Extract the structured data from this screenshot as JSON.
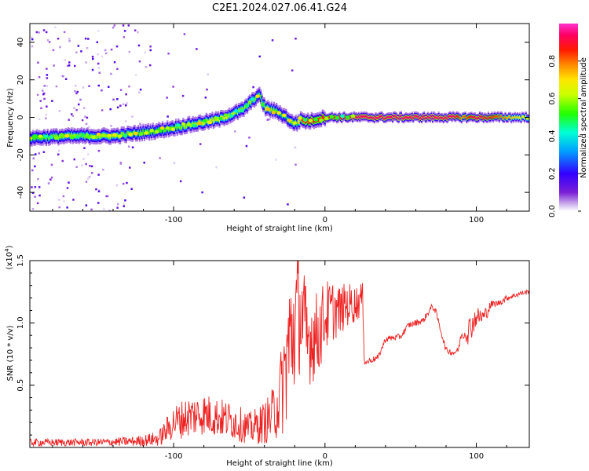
{
  "title": "C2E1.2024.027.06.41.G24",
  "chart_data": [
    {
      "type": "heatmap",
      "xlabel": "Height of straight line (km)",
      "ylabel": "Frequency (Hz)",
      "xlim": [
        -195,
        135
      ],
      "ylim": [
        -50,
        50
      ],
      "xticks": [
        -100,
        0,
        100
      ],
      "xtick_labels": [
        "-100",
        "0",
        "100"
      ],
      "yticks": [
        -40,
        -20,
        0,
        20,
        40
      ],
      "ytick_labels": [
        "-40",
        "-20",
        "0",
        "20",
        "40"
      ],
      "colorbar": {
        "label": "Normalized spectral amplitude",
        "range": [
          0,
          1
        ],
        "ticks": [
          0.0,
          0.2,
          0.4,
          0.6,
          0.8
        ],
        "tick_labels": [
          "0.0",
          "0.2",
          "0.4",
          "0.6",
          "0.8"
        ],
        "colormap": [
          "#ffffff",
          "#d6c2f0",
          "#7a1fd6",
          "#3300ff",
          "#00a0ff",
          "#00ffd5",
          "#22ff00",
          "#c8ff00",
          "#ffe600",
          "#ff8a00",
          "#ff1a00",
          "#ff0066",
          "#ff33cc"
        ]
      },
      "ridge": {
        "x": [
          -195,
          -170,
          -140,
          -110,
          -90,
          -70,
          -55,
          -47,
          -44,
          -40,
          -32,
          -26,
          -22,
          -19,
          -16,
          -14,
          -10,
          0,
          20,
          60,
          85,
          90,
          100,
          135
        ],
        "frequency": [
          -11,
          -10,
          -10,
          -7,
          -4,
          -1,
          4,
          10,
          12,
          5,
          3,
          0,
          -3,
          -3,
          -1,
          -2,
          -2,
          0,
          0,
          0,
          0,
          0,
          0,
          0
        ],
        "peak_amplitude": [
          0.5,
          0.55,
          0.55,
          0.5,
          0.55,
          0.6,
          0.55,
          0.55,
          0.45,
          0.6,
          0.5,
          0.45,
          0.55,
          0.5,
          0.8,
          0.8,
          0.85,
          0.85,
          0.92,
          0.92,
          0.92,
          0.75,
          0.92,
          0.6
        ]
      },
      "grid": false,
      "legend": "none"
    },
    {
      "type": "line",
      "xlabel": "Height of straight line (km)",
      "ylabel": "SNR (10 * v/v)",
      "yscale_label": "(x10",
      "yscale_exponent": "4",
      "yscale_close": ")",
      "xlim": [
        -195,
        135
      ],
      "ylim": [
        0,
        15000
      ],
      "xticks": [
        -100,
        0,
        100
      ],
      "xtick_labels": [
        "-100",
        "0",
        "100"
      ],
      "yticks": [
        5000,
        10000,
        15000
      ],
      "ytick_labels": [
        "0.5",
        "1.0",
        "1.5"
      ],
      "series": [
        {
          "color": "#ee2222",
          "x": [
            -195,
            -150,
            -125,
            -110,
            -100,
            -90,
            -80,
            -70,
            -60,
            -50,
            -40,
            -35,
            -30,
            -27,
            -25,
            -22,
            -20,
            -18,
            -15,
            -12,
            -10,
            -5,
            0,
            5,
            10,
            15,
            20,
            23,
            25,
            26,
            27,
            30,
            35,
            40,
            45,
            50,
            55,
            60,
            65,
            70,
            71,
            73,
            80,
            85,
            88,
            90,
            93,
            95,
            100,
            105,
            110,
            115,
            120,
            125,
            130,
            135
          ],
          "y": [
            400,
            400,
            500,
            700,
            2000,
            2500,
            2700,
            2400,
            2100,
            1500,
            2000,
            2500,
            4000,
            5500,
            7500,
            9000,
            10000,
            11000,
            10500,
            8000,
            9000,
            9000,
            10500,
            11000,
            11000,
            11500,
            11500,
            11800,
            12000,
            7000,
            6800,
            7000,
            7200,
            8700,
            8800,
            8900,
            9800,
            10000,
            10200,
            11200,
            11300,
            11000,
            7800,
            7600,
            7800,
            9000,
            9200,
            9400,
            10500,
            10500,
            11500,
            11600,
            12000,
            12200,
            12400,
            12500
          ],
          "noise": [
            300,
            300,
            400,
            600,
            1400,
            1700,
            1700,
            1600,
            1500,
            1300,
            1700,
            2200,
            3200,
            4500,
            5800,
            6000,
            6000,
            5000,
            5000,
            4800,
            4000,
            3500,
            3000,
            2500,
            2000,
            1800,
            1500,
            1400,
            1200,
            400,
            300,
            250,
            250,
            250,
            250,
            250,
            250,
            250,
            250,
            250,
            250,
            250,
            250,
            250,
            250,
            250,
            700,
            1200,
            800,
            700,
            300,
            250,
            250,
            200,
            200,
            200
          ]
        }
      ],
      "grid": false,
      "legend": "none"
    }
  ]
}
